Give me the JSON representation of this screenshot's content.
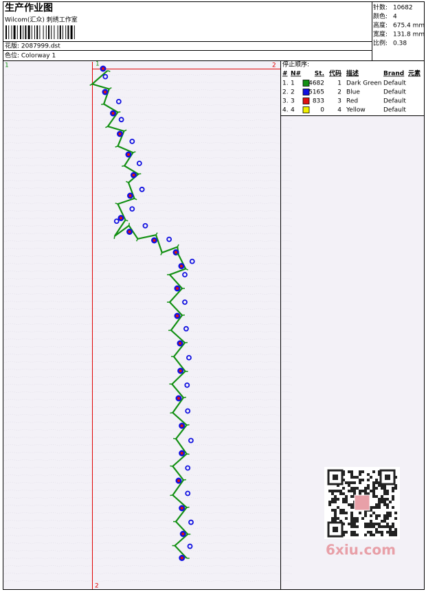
{
  "header": {
    "title": "生产作业图",
    "subtitle": "Wilcom(汇众) 刺绣工作室",
    "design": "花版: 2087999.dst",
    "colorway": "色位: Colorway 1"
  },
  "stats": [
    {
      "label": "针数:",
      "value": "10682"
    },
    {
      "label": "颜色:",
      "value": "4"
    },
    {
      "label": "高度:",
      "value": "675.4 mm"
    },
    {
      "label": "宽度:",
      "value": "131.8 mm"
    },
    {
      "label": "比例:",
      "value": "0.38"
    }
  ],
  "canvas": {
    "markers": {
      "top_left": "1",
      "top_right": "2",
      "origin": "1",
      "bottom": "2"
    }
  },
  "stop_sequence": {
    "title": "停止顺序:",
    "columns": [
      "#",
      "N#",
      "St.",
      "代码",
      "描述",
      "Brand",
      "元素"
    ],
    "rows": [
      {
        "index": "1.",
        "needle": "1",
        "color": "#139013",
        "stitches": "4682",
        "code": "1",
        "description": "Dark Green",
        "brand": "Default"
      },
      {
        "index": "2.",
        "needle": "2",
        "color": "#1010e0",
        "stitches": "5165",
        "code": "2",
        "description": "Blue",
        "brand": "Default"
      },
      {
        "index": "3.",
        "needle": "3",
        "color": "#e01010",
        "stitches": "833",
        "code": "3",
        "description": "Red",
        "brand": "Default"
      },
      {
        "index": "4.",
        "needle": "4",
        "color": "#f0f000",
        "stitches": "0",
        "code": "4",
        "description": "Yellow",
        "brand": "Default"
      }
    ]
  },
  "watermark": "6xiu.com"
}
